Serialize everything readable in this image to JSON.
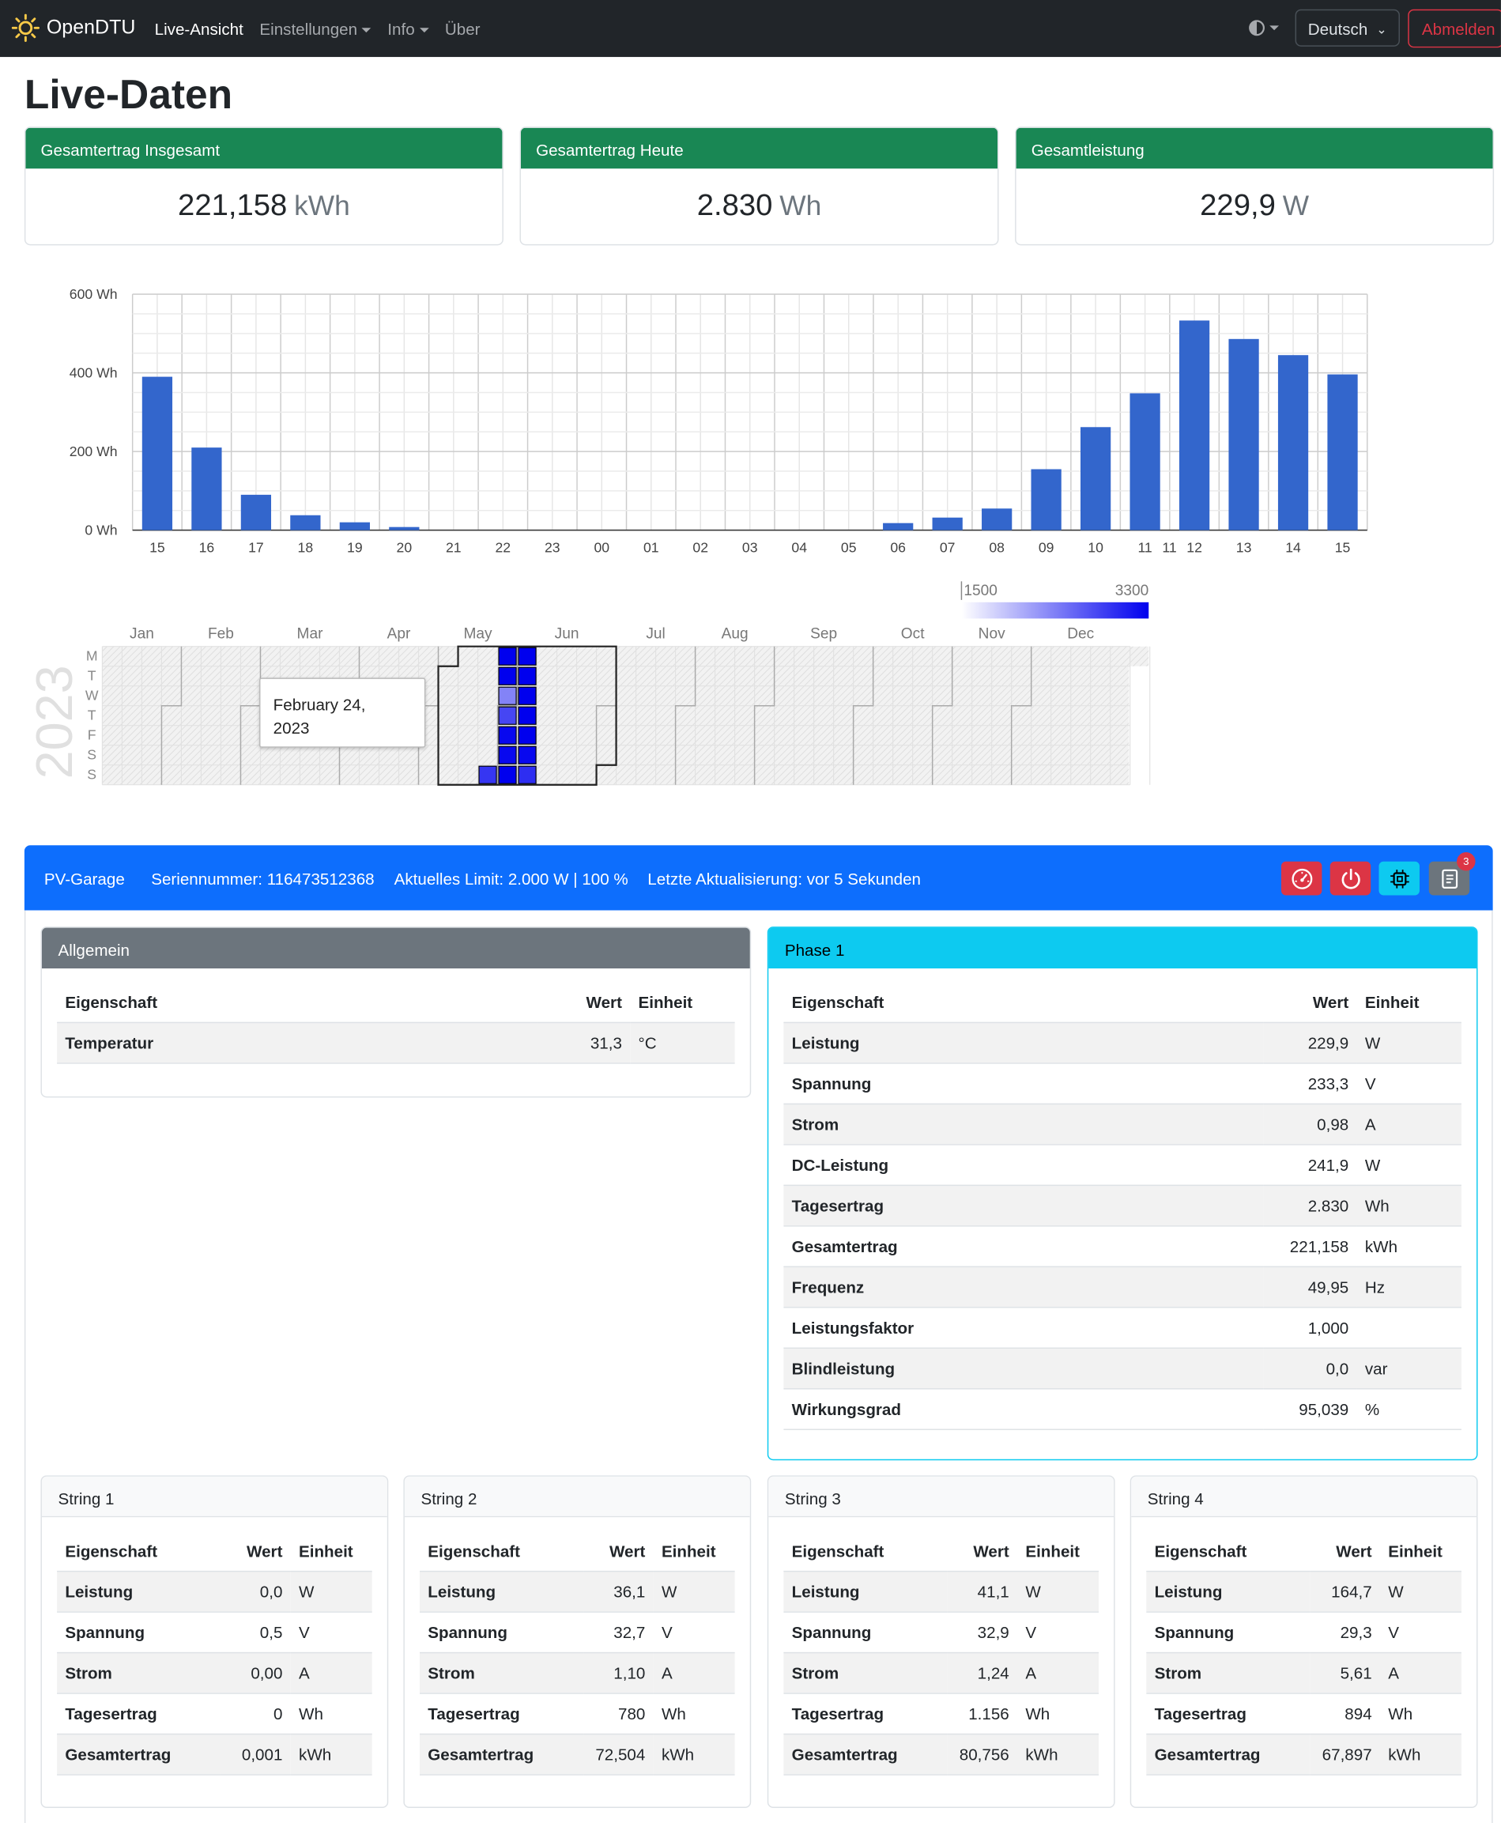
{
  "nav": {
    "brand": "OpenDTU",
    "links": [
      "Live-Ansicht",
      "Einstellungen",
      "Info",
      "Über"
    ],
    "language": "Deutsch",
    "logout": "Abmelden"
  },
  "page": {
    "title": "Live-Daten"
  },
  "stats": [
    {
      "label": "Gesamtertrag Insgesamt",
      "value": "221,158",
      "unit": "kWh"
    },
    {
      "label": "Gesamtertrag Heute",
      "value": "2.830",
      "unit": "Wh"
    },
    {
      "label": "Gesamtleistung",
      "value": "229,9",
      "unit": "W"
    }
  ],
  "colors": {
    "bar": "#3366cc",
    "header_green": "#198754",
    "inverter_blue": "#0d6efd",
    "phase_cyan": "#0dcaf0",
    "danger": "#dc3545",
    "heat_low": "#ffffff",
    "heat_high": "#0000ee"
  },
  "chart_data": [
    {
      "type": "bar",
      "categories": [
        "15",
        "16",
        "17",
        "18",
        "19",
        "20",
        "21",
        "22",
        "23",
        "00",
        "01",
        "02",
        "03",
        "04",
        "05",
        "06",
        "07",
        "08",
        "09",
        "10",
        "11",
        "12",
        "13",
        "14",
        "15"
      ],
      "values": [
        390,
        210,
        90,
        38,
        20,
        8,
        0,
        0,
        0,
        0,
        0,
        0,
        0,
        0,
        0,
        18,
        32,
        55,
        155,
        262,
        348,
        533,
        486,
        445,
        396
      ],
      "extra_xtick": "11",
      "yticks": [
        "600 Wh",
        "400 Wh",
        "200 Wh",
        "0 Wh"
      ],
      "ylim": [
        0,
        600
      ],
      "grid": true
    },
    {
      "type": "heatmap",
      "year": "2023",
      "months": [
        "Jan",
        "Feb",
        "Mar",
        "Apr",
        "May",
        "Jun",
        "Jul",
        "Aug",
        "Sep",
        "Oct",
        "Nov",
        "Dec"
      ],
      "weekdays": [
        "M",
        "T",
        "W",
        "T",
        "F",
        "S",
        "S"
      ],
      "scale_min": "1500",
      "scale_max": "3300",
      "cells": [
        {
          "week": 19,
          "day": 6,
          "value": 2600
        },
        {
          "week": 20,
          "day": 0,
          "value": 3300
        },
        {
          "week": 20,
          "day": 1,
          "value": 3300
        },
        {
          "week": 20,
          "day": 2,
          "value": 1600
        },
        {
          "week": 20,
          "day": 3,
          "value": 2400
        },
        {
          "week": 20,
          "day": 4,
          "value": 3200
        },
        {
          "week": 20,
          "day": 5,
          "value": 3200
        },
        {
          "week": 20,
          "day": 6,
          "value": 3300
        },
        {
          "week": 21,
          "day": 0,
          "value": 3300
        },
        {
          "week": 21,
          "day": 1,
          "value": 3300
        },
        {
          "week": 21,
          "day": 2,
          "value": 3300
        },
        {
          "week": 21,
          "day": 3,
          "value": 3300
        },
        {
          "week": 21,
          "day": 4,
          "value": 3300
        },
        {
          "week": 21,
          "day": 5,
          "value": 3200
        },
        {
          "week": 21,
          "day": 6,
          "value": 2700
        }
      ],
      "tooltip": [
        "February 24,",
        "2023"
      ]
    }
  ],
  "inverter": {
    "name": "PV-Garage",
    "serial": "Seriennummer: 116473512368",
    "limit": "Aktuelles Limit: 2.000 W | 100 %",
    "updated": "Letzte Aktualisierung: vor 5 Sekunden",
    "event_count": "3"
  },
  "general": {
    "title": "Allgemein",
    "headers": [
      "Eigenschaft",
      "Wert",
      "Einheit"
    ],
    "rows": [
      [
        "Temperatur",
        "31,3",
        "°C"
      ]
    ]
  },
  "phase": {
    "title": "Phase 1",
    "headers": [
      "Eigenschaft",
      "Wert",
      "Einheit"
    ],
    "rows": [
      [
        "Leistung",
        "229,9",
        "W"
      ],
      [
        "Spannung",
        "233,3",
        "V"
      ],
      [
        "Strom",
        "0,98",
        "A"
      ],
      [
        "DC-Leistung",
        "241,9",
        "W"
      ],
      [
        "Tagesertrag",
        "2.830",
        "Wh"
      ],
      [
        "Gesamtertrag",
        "221,158",
        "kWh"
      ],
      [
        "Frequenz",
        "49,95",
        "Hz"
      ],
      [
        "Leistungsfaktor",
        "1,000",
        ""
      ],
      [
        "Blindleistung",
        "0,0",
        "var"
      ],
      [
        "Wirkungsgrad",
        "95,039",
        "%"
      ]
    ]
  },
  "strings": [
    {
      "title": "String 1",
      "headers": [
        "Eigenschaft",
        "Wert",
        "Einheit"
      ],
      "rows": [
        [
          "Leistung",
          "0,0",
          "W"
        ],
        [
          "Spannung",
          "0,5",
          "V"
        ],
        [
          "Strom",
          "0,00",
          "A"
        ],
        [
          "Tagesertrag",
          "0",
          "Wh"
        ],
        [
          "Gesamtertrag",
          "0,001",
          "kWh"
        ]
      ]
    },
    {
      "title": "String 2",
      "headers": [
        "Eigenschaft",
        "Wert",
        "Einheit"
      ],
      "rows": [
        [
          "Leistung",
          "36,1",
          "W"
        ],
        [
          "Spannung",
          "32,7",
          "V"
        ],
        [
          "Strom",
          "1,10",
          "A"
        ],
        [
          "Tagesertrag",
          "780",
          "Wh"
        ],
        [
          "Gesamtertrag",
          "72,504",
          "kWh"
        ]
      ]
    },
    {
      "title": "String 3",
      "headers": [
        "Eigenschaft",
        "Wert",
        "Einheit"
      ],
      "rows": [
        [
          "Leistung",
          "41,1",
          "W"
        ],
        [
          "Spannung",
          "32,9",
          "V"
        ],
        [
          "Strom",
          "1,24",
          "A"
        ],
        [
          "Tagesertrag",
          "1.156",
          "Wh"
        ],
        [
          "Gesamtertrag",
          "80,756",
          "kWh"
        ]
      ]
    },
    {
      "title": "String 4",
      "headers": [
        "Eigenschaft",
        "Wert",
        "Einheit"
      ],
      "rows": [
        [
          "Leistung",
          "164,7",
          "W"
        ],
        [
          "Spannung",
          "29,3",
          "V"
        ],
        [
          "Strom",
          "5,61",
          "A"
        ],
        [
          "Tagesertrag",
          "894",
          "Wh"
        ],
        [
          "Gesamtertrag",
          "67,897",
          "kWh"
        ]
      ]
    }
  ]
}
